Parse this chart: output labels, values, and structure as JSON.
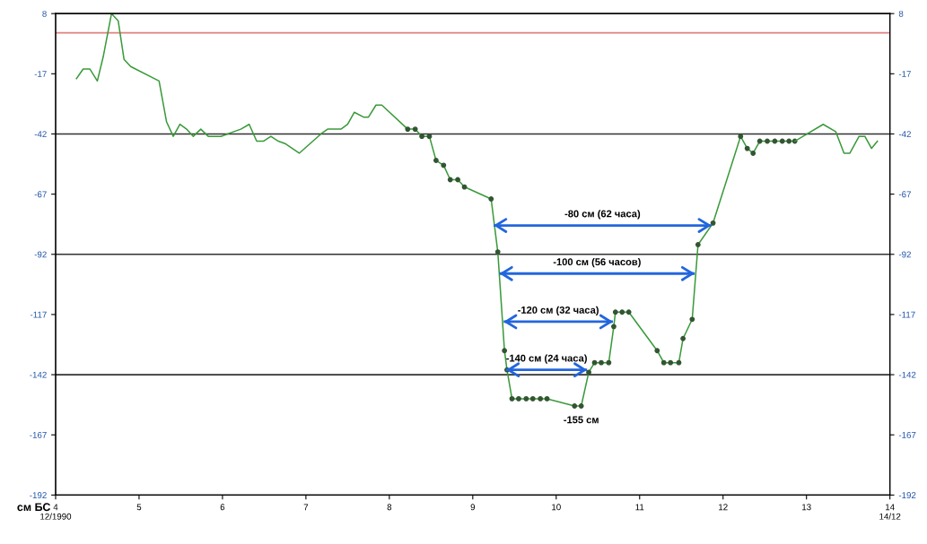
{
  "chart_data": {
    "type": "line",
    "ylabel": "см БС",
    "xlim": [
      4,
      14
    ],
    "xticks": [
      {
        "value": 4,
        "label": "4\n12/1990"
      },
      5,
      6,
      7,
      8,
      9,
      10,
      11,
      12,
      13,
      {
        "value": 14,
        "label": "14\n14/12"
      }
    ],
    "ylim": [
      -192,
      8
    ],
    "yticks": [
      8,
      -17,
      -42,
      -67,
      -92,
      -117,
      -142,
      -167,
      -192
    ],
    "y2lim": [
      -192,
      8
    ],
    "y2ticks": [
      8,
      -17,
      -42,
      -67,
      -92,
      -117,
      -142,
      -167,
      -192
    ],
    "grid": false,
    "legend": false,
    "ref_lines": [
      {
        "axis": "y",
        "value": 0,
        "color": "#e08080"
      },
      {
        "axis": "y",
        "value": -42,
        "color": "#333333"
      },
      {
        "axis": "y",
        "value": -92,
        "color": "#333333"
      },
      {
        "axis": "y",
        "value": -142,
        "color": "#333333"
      }
    ],
    "series": [
      {
        "color": "#3a9a3a",
        "marker": "none",
        "x": [
          4.25,
          4.33,
          4.41,
          4.5,
          4.57,
          4.67,
          4.75,
          4.82,
          4.9,
          5.24,
          5.33,
          5.41,
          5.49,
          5.57,
          5.65,
          5.74,
          5.83,
          5.98,
          6.22,
          6.32,
          6.41,
          6.49,
          6.58,
          6.67,
          6.75,
          6.92,
          7.18,
          7.26,
          7.42,
          7.5,
          7.58,
          7.69,
          7.75,
          7.84,
          7.91,
          8.22
        ],
        "values": [
          -19,
          -15,
          -15,
          -20,
          -10,
          8,
          5,
          -11,
          -14,
          -20,
          -37,
          -43,
          -38,
          -40,
          -43,
          -40,
          -43,
          -43,
          -40,
          -38,
          -45,
          -45,
          -43,
          -45,
          -46,
          -50,
          -42,
          -40,
          -40,
          -38,
          -33,
          -35,
          -35,
          -30,
          -30,
          -40
        ]
      },
      {
        "color": "#3a9a3a",
        "marker": "circle",
        "x": [
          8.22,
          8.31,
          8.39,
          8.48,
          8.56,
          8.65,
          8.73,
          8.82,
          8.9,
          9.22,
          9.3,
          9.38,
          9.41,
          9.47,
          9.55,
          9.64,
          9.72,
          9.81,
          9.89,
          10.22,
          10.3,
          10.39,
          10.46,
          10.54,
          10.63,
          10.69,
          10.71,
          10.79,
          10.87,
          11.21,
          11.29,
          11.37,
          11.47,
          11.52,
          11.63,
          11.7,
          11.88,
          12.21,
          12.29,
          12.36,
          12.44,
          12.53,
          12.62,
          12.71,
          12.79,
          12.86
        ],
        "values": [
          -40,
          -40,
          -43,
          -43,
          -53,
          -55,
          -61,
          -61,
          -64,
          -69,
          -91,
          -132,
          -140,
          -152,
          -152,
          -152,
          -152,
          -152,
          -152,
          -155,
          -155,
          -141,
          -137,
          -137,
          -137,
          -122,
          -116,
          -116,
          -116,
          -132,
          -137,
          -137,
          -137,
          -127,
          -119,
          -88,
          -79,
          -43,
          -48,
          -50,
          -45,
          -45,
          -45,
          -45,
          -45,
          -45
        ]
      },
      {
        "color": "#3a9a3a",
        "marker": "none",
        "x": [
          12.86,
          13.2,
          13.35,
          13.45,
          13.52,
          13.63,
          13.7,
          13.78,
          13.85
        ],
        "values": [
          -45,
          -38,
          -41,
          -50,
          -50,
          -43,
          -43,
          -48,
          -45
        ]
      },
      {
        "type": "line",
        "color": "#2266dd",
        "x": [
          9.25,
          11.86
        ],
        "values": [
          -80,
          -80
        ]
      },
      {
        "type": "line",
        "color": "#2266dd",
        "x": [
          9.32,
          11.66
        ],
        "values": [
          -100,
          -100
        ]
      },
      {
        "type": "line",
        "color": "#2266dd",
        "x": [
          9.37,
          10.68
        ],
        "values": [
          -120,
          -120
        ]
      },
      {
        "type": "line",
        "color": "#2266dd",
        "x": [
          9.4,
          10.37
        ],
        "values": [
          -140,
          -140
        ]
      }
    ],
    "annotations": [
      "-80 см (62 часа)",
      "-100 см (56 часов)",
      "-120 см (32 часа)",
      "-140 см (24 часа)",
      {
        "text": "-155 см",
        "x": 10.3,
        "y": -155
      }
    ]
  }
}
